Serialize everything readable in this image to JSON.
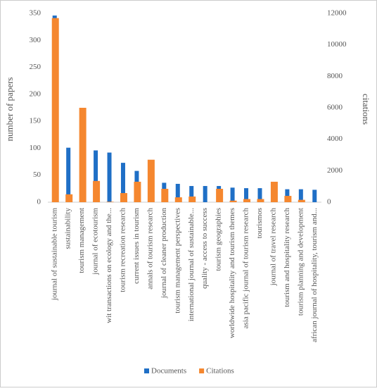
{
  "chart_data": {
    "type": "bar",
    "categories": [
      "journal of sustainable tourism",
      "sustainability",
      "tourism management",
      "journal of ecotourism",
      "wit transactions on ecology and the...",
      "tourism recreation research",
      "current issues in tourism",
      "annals of tourism research",
      "journal of cleaner production",
      "tourism management perspectives",
      "international journal of sustainable...",
      "quality - access to success",
      "tourism geographies",
      "worldwide hospitality and tourism themes",
      "asia pacific journal of tourism research",
      "tourismos",
      "journal of travel research",
      "tourism and hospitality research",
      "tourism planning and development",
      "african journal of hospitality, tourism and..."
    ],
    "series": [
      {
        "name": "Documents",
        "color": "#1f6fc6",
        "values": [
          346,
          101,
          98,
          96,
          92,
          73,
          58,
          45,
          36,
          34,
          30,
          30,
          30,
          27,
          26,
          26,
          25,
          24,
          24,
          23
        ]
      },
      {
        "name": "Citations",
        "color": "#f5872f",
        "axis": "y2",
        "values": [
          11700,
          500,
          6000,
          1350,
          30,
          580,
          1300,
          2700,
          850,
          310,
          360,
          0,
          850,
          100,
          200,
          200,
          1300,
          400,
          150,
          0
        ]
      }
    ],
    "y_label": "number of papers",
    "y2_label": "citations",
    "ylim": [
      0,
      350
    ],
    "yticks": [
      0,
      50,
      100,
      150,
      200,
      250,
      300,
      350
    ],
    "y2lim": [
      0,
      12000
    ],
    "y2ticks": [
      0,
      2000,
      4000,
      6000,
      8000,
      10000,
      12000
    ],
    "legend": "bottom"
  }
}
